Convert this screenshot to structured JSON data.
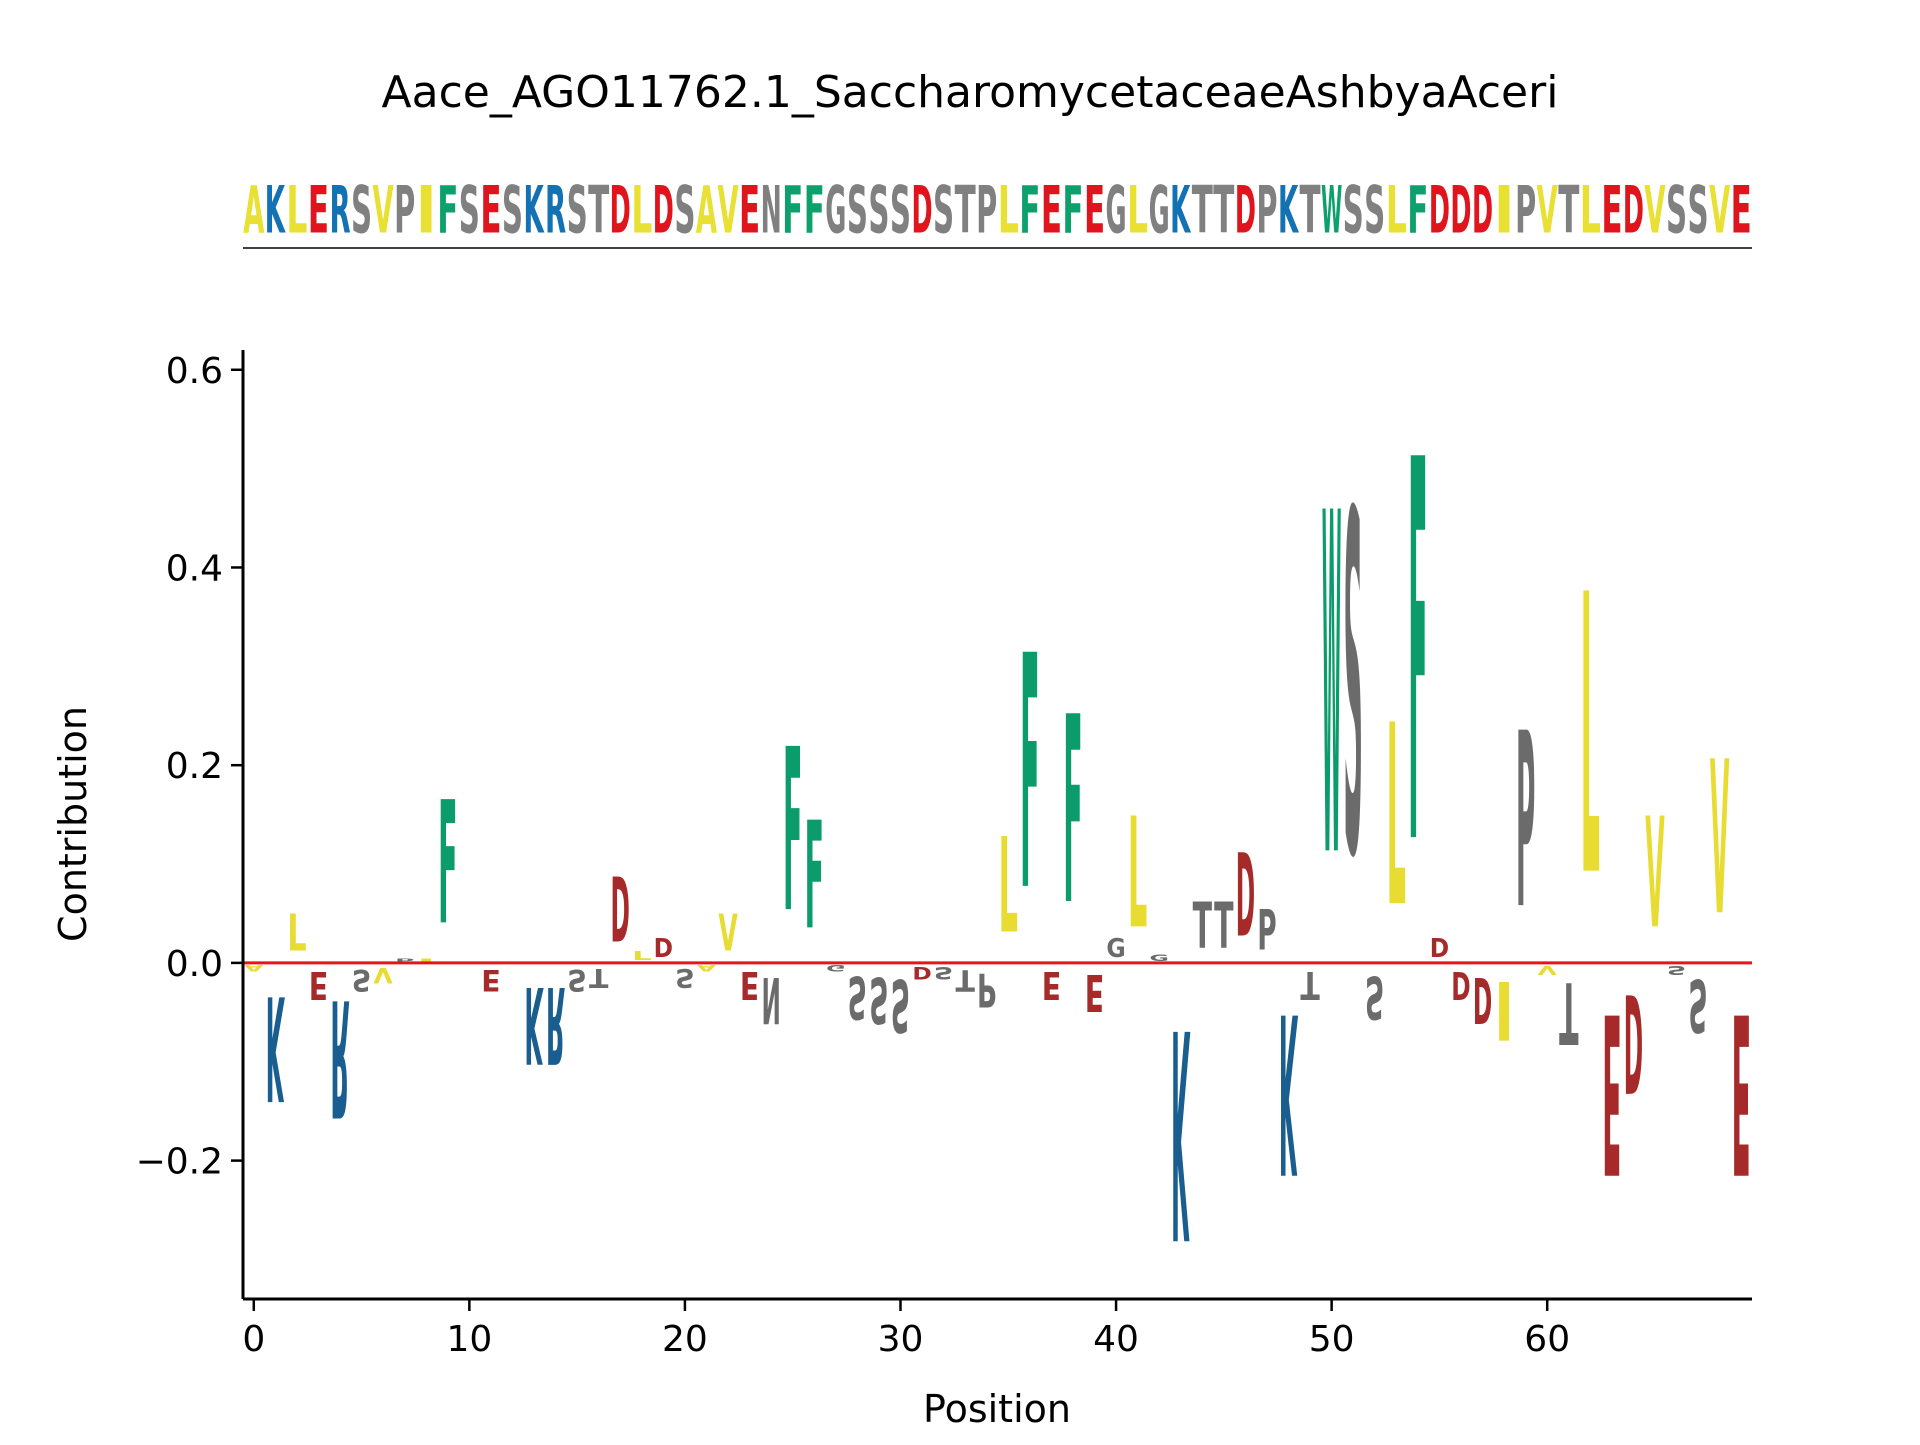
{
  "chart_data": {
    "type": "sequence-logo",
    "title": "Aace_AGO11762.1_SaccharomycetaceaeAshbyaAceri",
    "xlabel": "Position",
    "ylabel": "Contribution",
    "sequence": "AKLERSVPIFSESKRSTDLDSAVENFFGSSSDSTPLFEFEGLGKTTDPKTWSSLFDDDIPVTLEDVSSVE",
    "xlim": [
      -0.5,
      69.5
    ],
    "ylim": [
      -0.34,
      0.62
    ],
    "xticks": [
      0,
      10,
      20,
      30,
      40,
      50,
      60
    ],
    "xtick_labels": [
      "0",
      "10",
      "20",
      "30",
      "40",
      "50",
      "60"
    ],
    "yticks": [
      -0.2,
      0.0,
      0.2,
      0.4,
      0.6
    ],
    "ytick_labels": [
      "−0.2",
      "0.0",
      "0.2",
      "0.4",
      "0.6"
    ],
    "zero_line_color": "#e8141c",
    "contribution_colors": {
      "acidic": "#a62a2a",
      "basic": "#1a5e8f",
      "polar": "#6b6b6b",
      "hydrophobic": "#e8dc32",
      "aromatic": "#0c9c6c"
    },
    "sequence_colors": {
      "acidic": "#e0141c",
      "basic": "#1272b4",
      "polar": "#808080",
      "hydrophobic": "#e8e032",
      "aromatic": "#0ca06c"
    },
    "residue_classes": {
      "D": "acidic",
      "E": "acidic",
      "K": "basic",
      "R": "basic",
      "H": "basic",
      "S": "polar",
      "T": "polar",
      "N": "polar",
      "Q": "polar",
      "G": "polar",
      "P": "polar",
      "C": "polar",
      "A": "hydrophobic",
      "V": "hydrophobic",
      "L": "hydrophobic",
      "I": "hydrophobic",
      "M": "hydrophobic",
      "F": "aromatic",
      "W": "aromatic",
      "Y": "aromatic"
    },
    "contributions": [
      -0.01,
      -0.17,
      0.06,
      -0.045,
      -0.19,
      -0.035,
      -0.025,
      0.005,
      0.005,
      0.2,
      0.0,
      -0.035,
      0.0,
      -0.125,
      -0.125,
      -0.035,
      -0.03,
      0.105,
      0.015,
      0.03,
      -0.03,
      -0.01,
      0.06,
      -0.045,
      -0.075,
      0.265,
      0.175,
      -0.01,
      -0.07,
      -0.075,
      -0.085,
      -0.02,
      -0.02,
      -0.035,
      -0.055,
      0.155,
      0.38,
      -0.045,
      0.305,
      -0.06,
      0.03,
      0.18,
      0.01,
      -0.34,
      0.075,
      0.075,
      0.135,
      0.065,
      -0.26,
      -0.045,
      0.555,
      0.555,
      -0.07,
      0.295,
      0.62,
      0.03,
      -0.045,
      -0.075,
      -0.095,
      0.285,
      -0.015,
      -0.1,
      0.455,
      -0.26,
      -0.16,
      0.18,
      -0.015,
      -0.085,
      0.25,
      -0.26
    ]
  }
}
